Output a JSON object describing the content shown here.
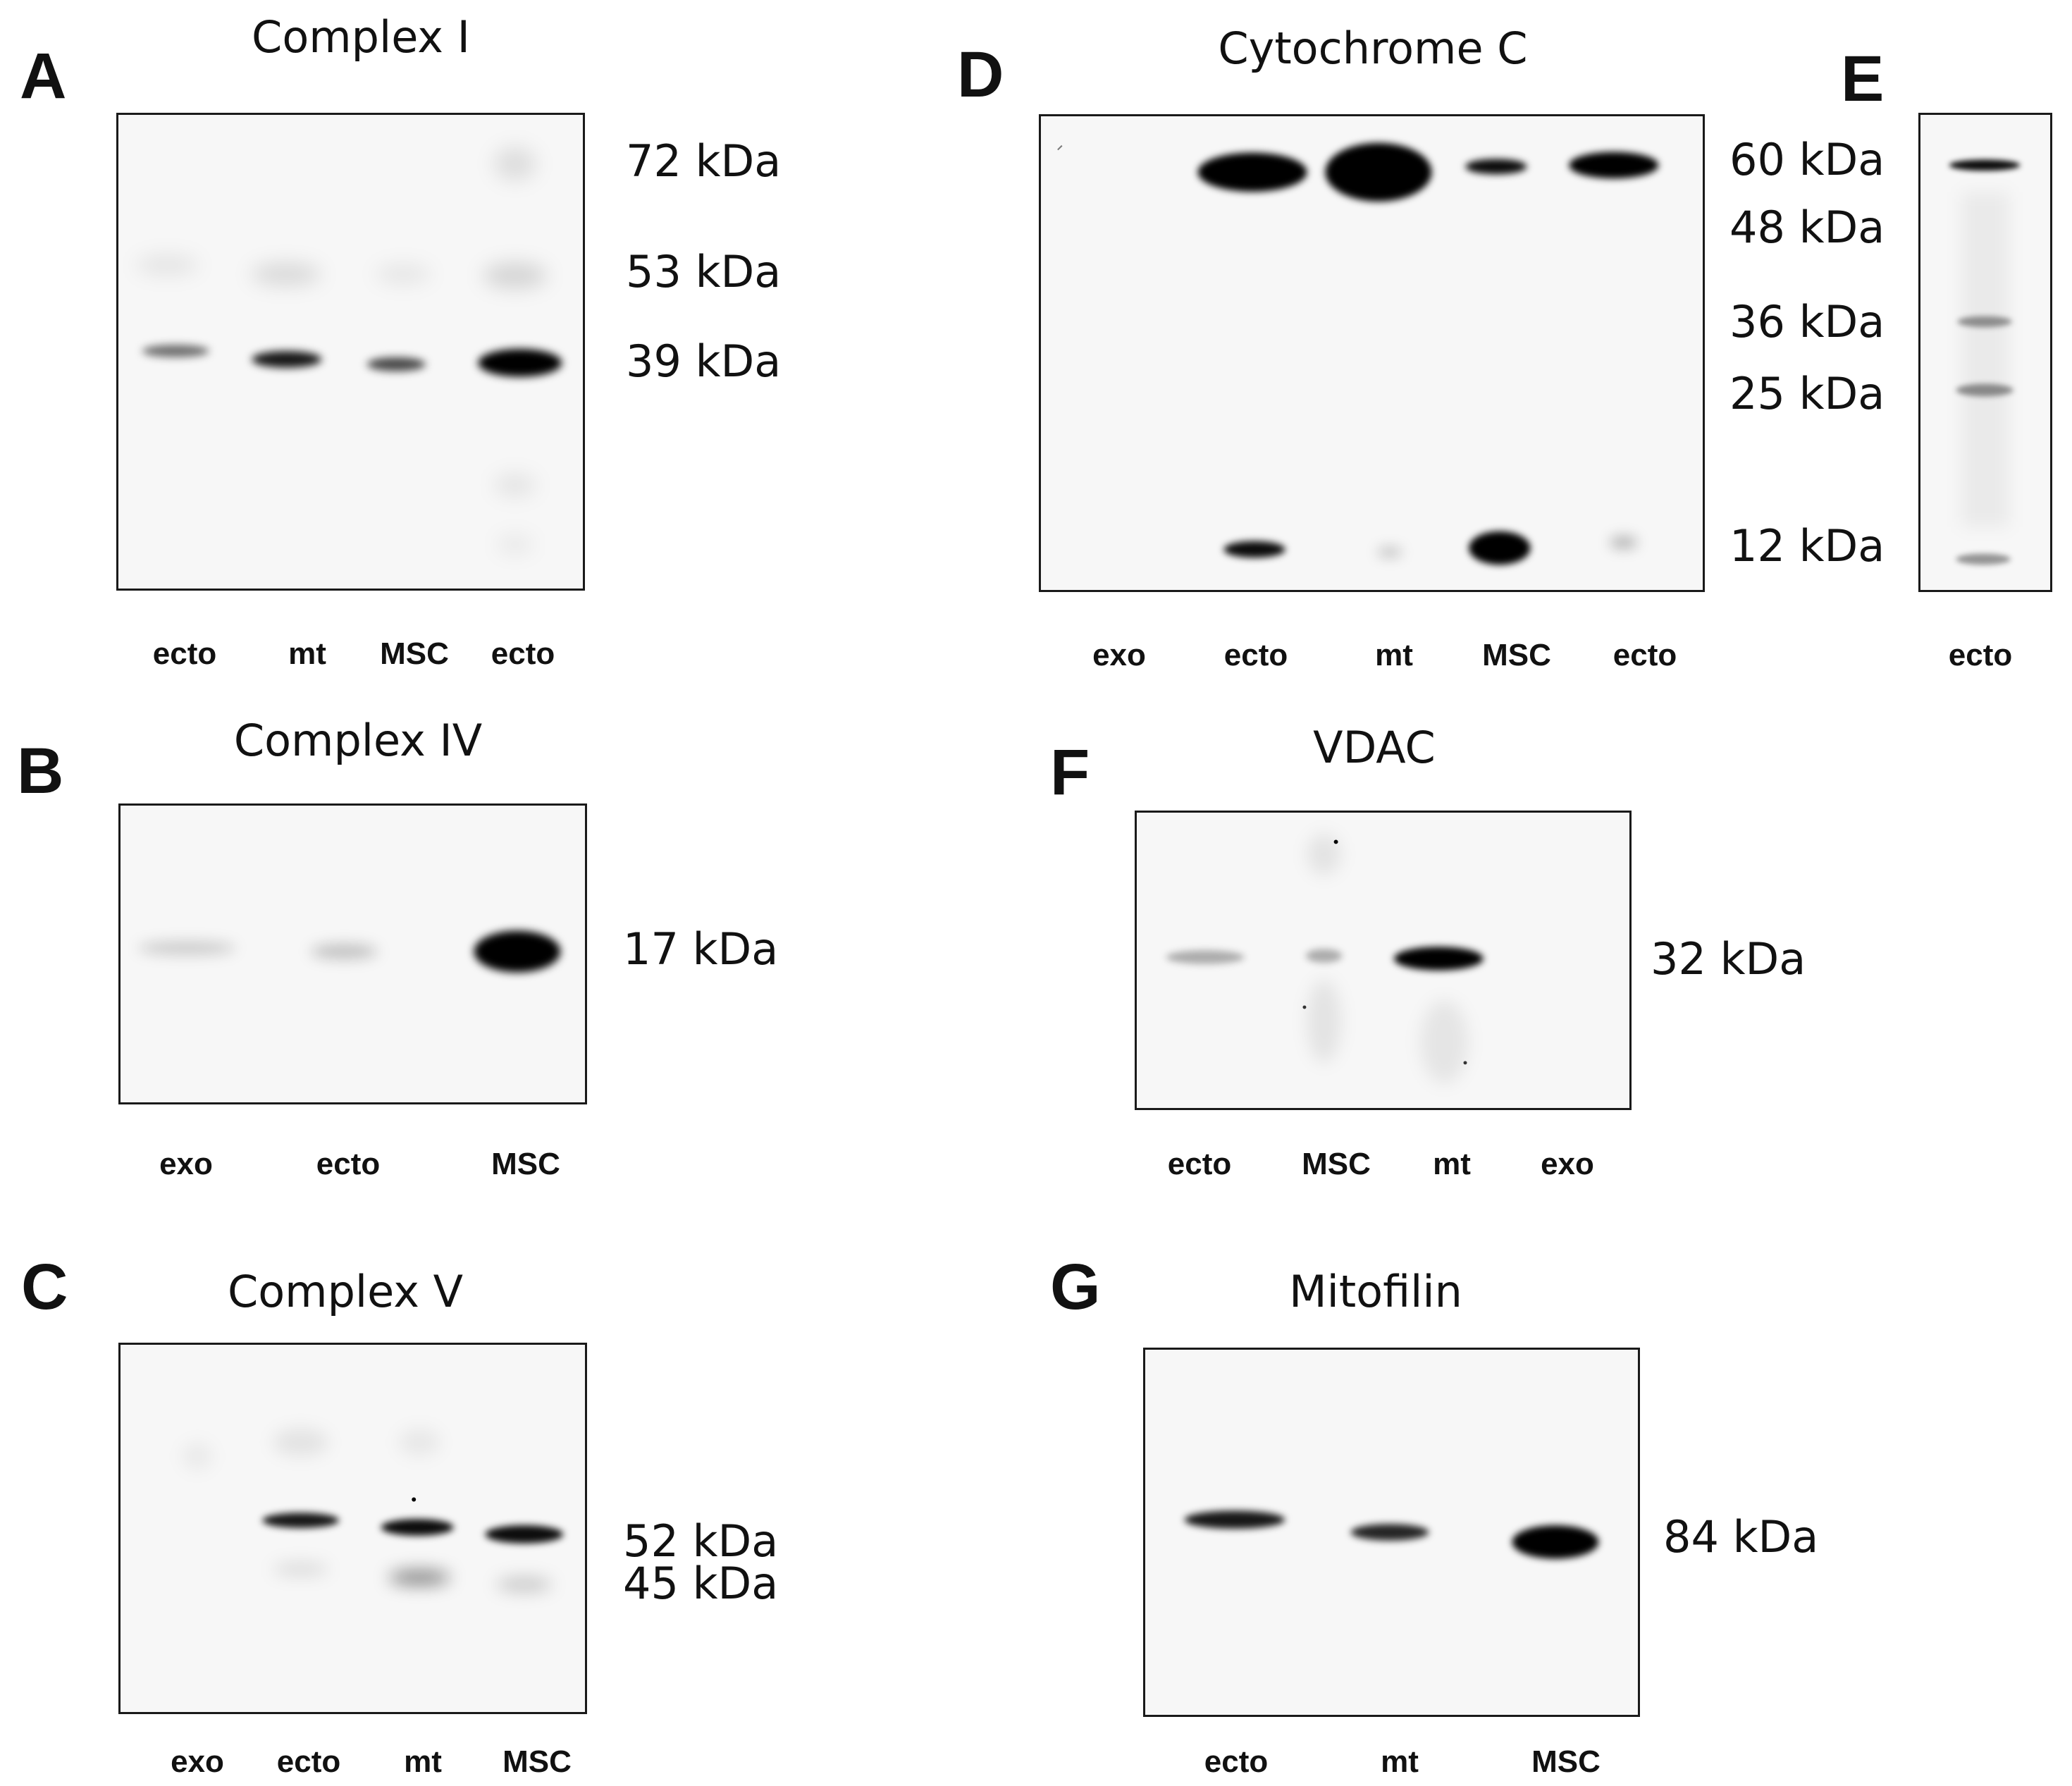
{
  "figure": {
    "panels": [
      {
        "letter": "A",
        "title": "Complex I",
        "markers": [
          "72 kDa",
          "53 kDa",
          "39 kDa"
        ],
        "lanes": [
          "ecto",
          "mt",
          "MSC",
          "ecto"
        ]
      },
      {
        "letter": "B",
        "title": "Complex IV",
        "markers": [
          "17 kDa"
        ],
        "lanes": [
          "exo",
          "ecto",
          "MSC"
        ]
      },
      {
        "letter": "C",
        "title": "Complex V",
        "markers": [
          "52 kDa",
          "45 kDa"
        ],
        "lanes": [
          "exo",
          "ecto",
          "mt",
          "MSC"
        ]
      },
      {
        "letter": "D",
        "title": "Cytochrome C",
        "markers": [
          "60 kDa",
          "48 kDa",
          "36 kDa",
          "25 kDa",
          "12 kDa"
        ],
        "lanes": [
          "exo",
          "ecto",
          "mt",
          "MSC",
          "ecto"
        ]
      },
      {
        "letter": "E",
        "title": "",
        "markers": [],
        "lanes": [
          "ecto"
        ]
      },
      {
        "letter": "F",
        "title": "VDAC",
        "markers": [
          "32 kDa"
        ],
        "lanes": [
          "ecto",
          "MSC",
          "mt",
          "exo"
        ]
      },
      {
        "letter": "G",
        "title": "Mitofilin",
        "markers": [
          "84 kDa"
        ],
        "lanes": [
          "ecto",
          "mt",
          "MSC"
        ]
      }
    ]
  },
  "colors": {
    "band": "#000000",
    "membrane": "#f7f7f7",
    "frame": "#1a1a1a"
  }
}
